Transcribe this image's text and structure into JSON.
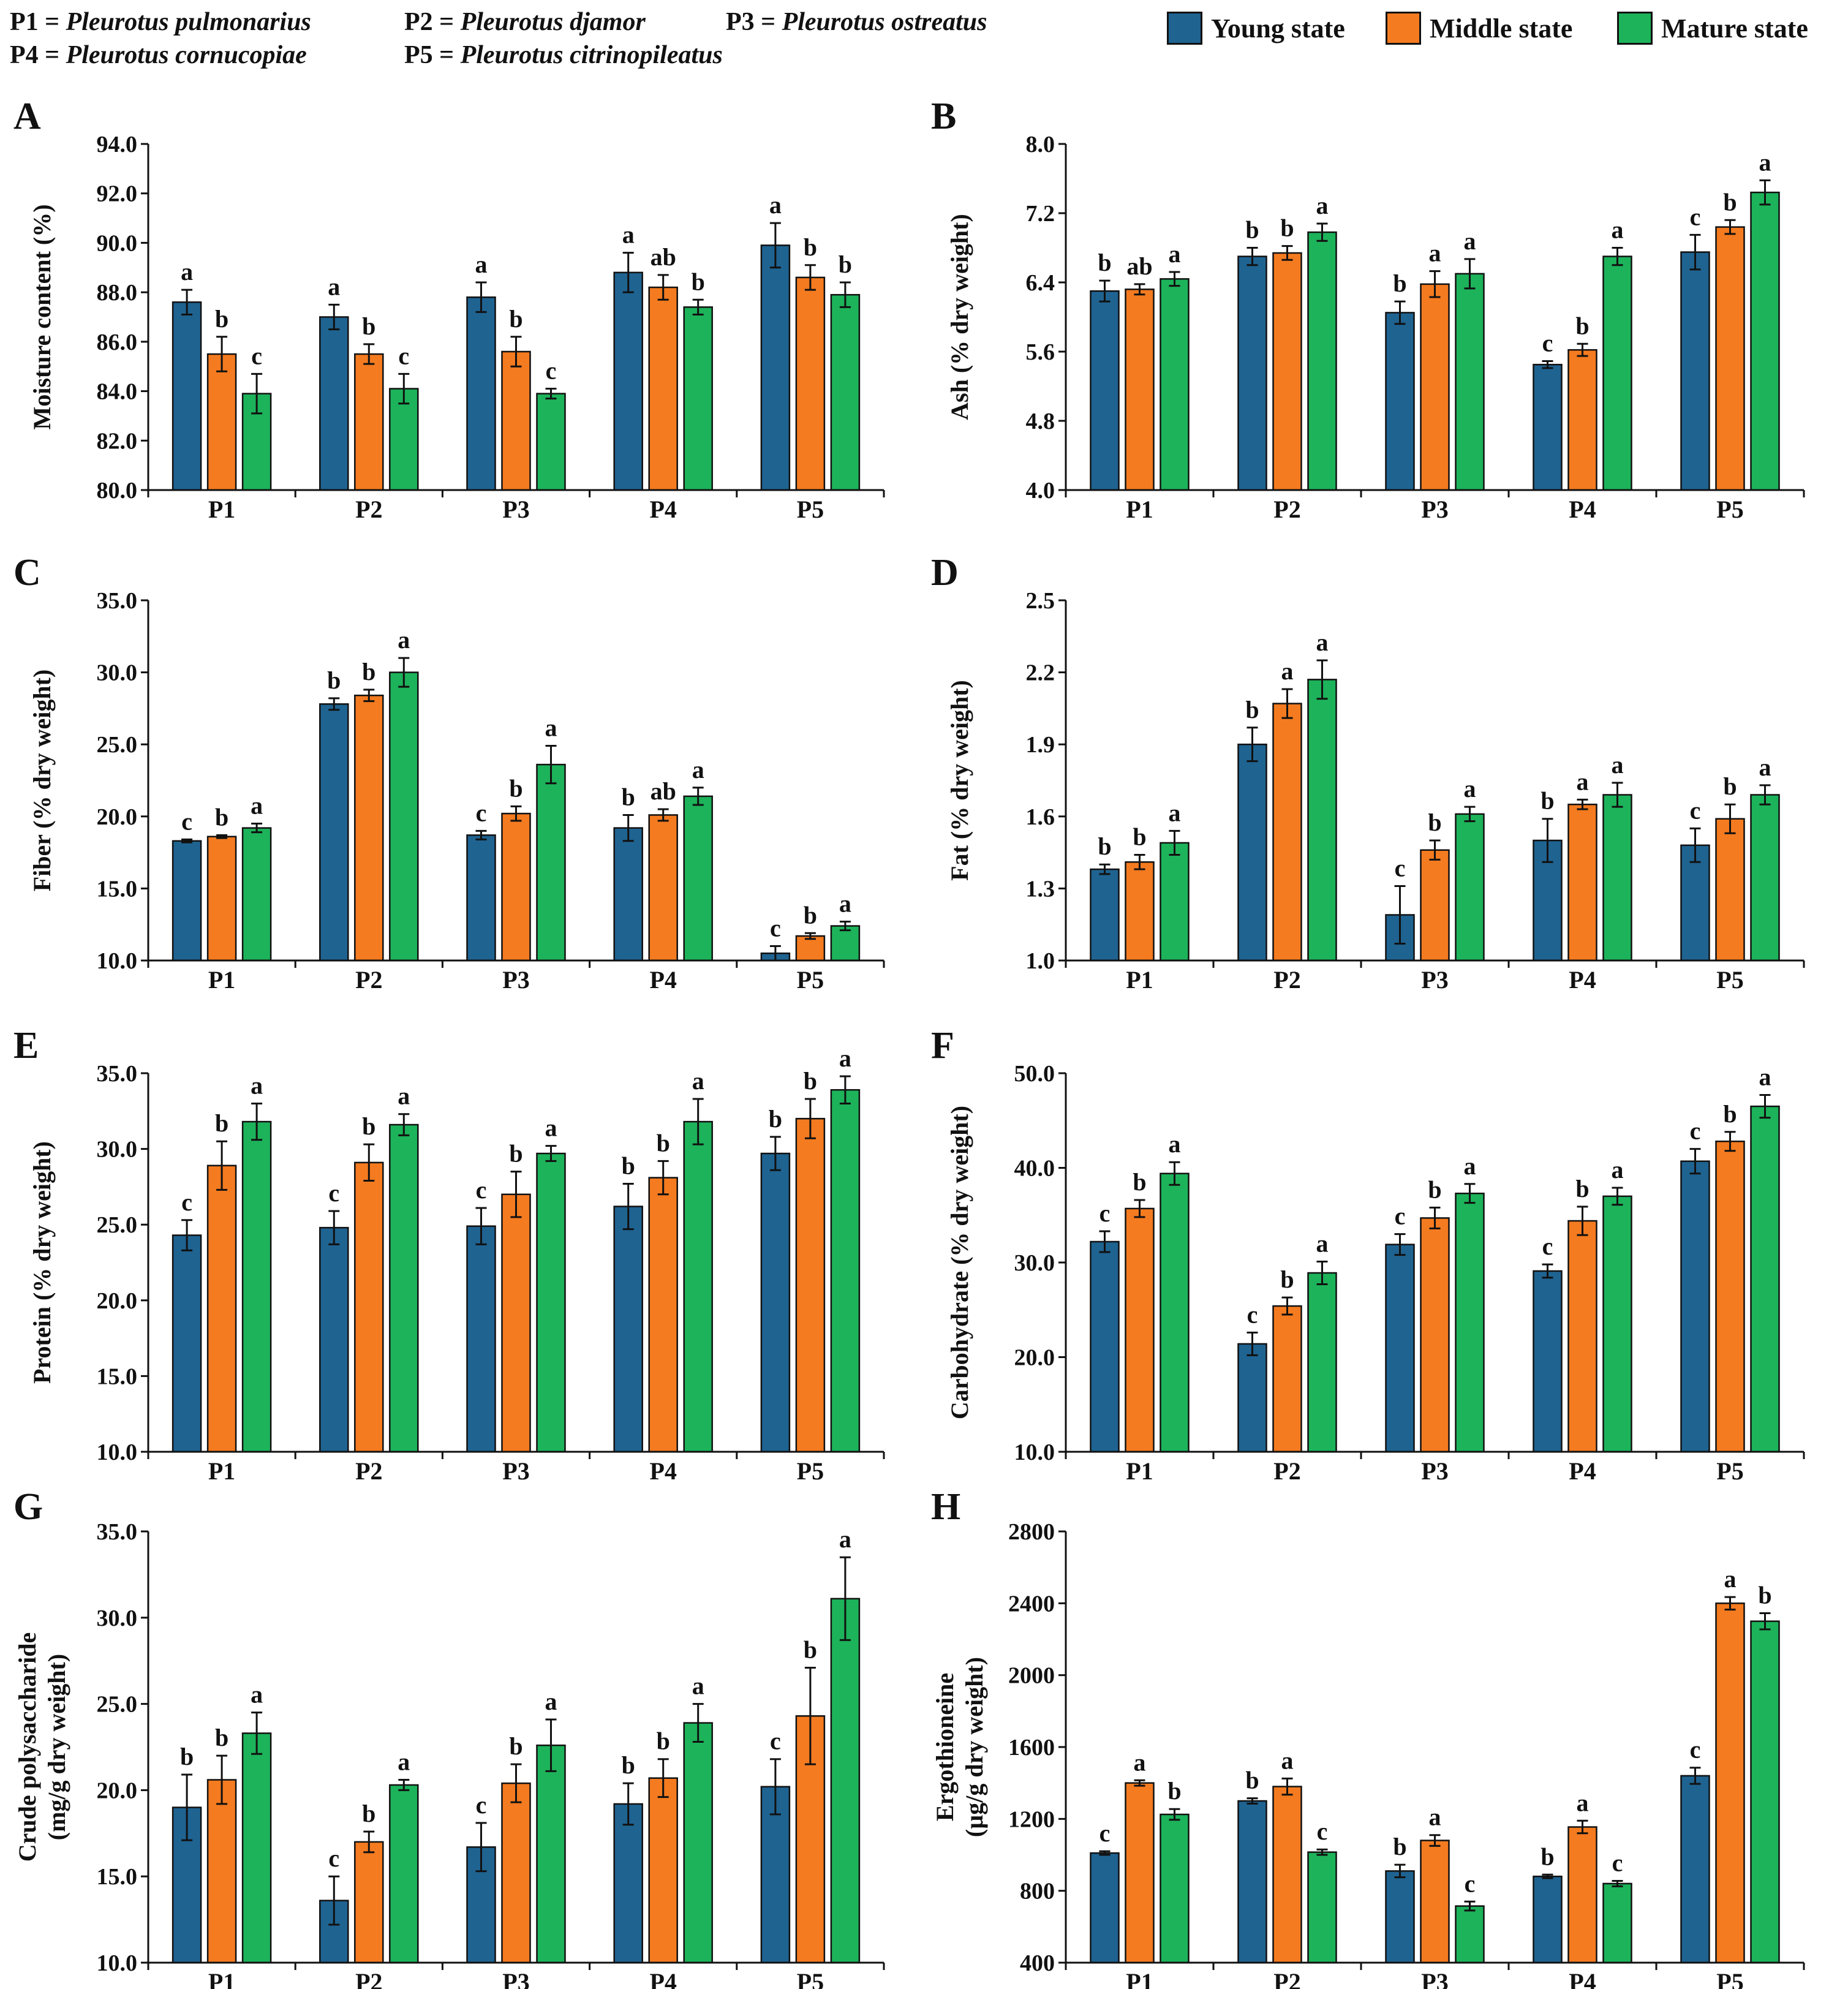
{
  "colors": {
    "young": "#1f6391",
    "middle": "#f47b20",
    "mature": "#1db35a",
    "axis": "#111111"
  },
  "legend": [
    {
      "label": "Young state",
      "color": "#1f6391"
    },
    {
      "label": "Middle state",
      "color": "#f47b20"
    },
    {
      "label": "Mature state",
      "color": "#1db35a"
    }
  ],
  "species": [
    {
      "code": "P1 =",
      "name": "Pleurotus pulmonarius"
    },
    {
      "code": "P2 =",
      "name": "Pleurotus djamor"
    },
    {
      "code": "P3 =",
      "name": "Pleurotus ostreatus"
    },
    {
      "code": "P4 =",
      "name": "Pleurotus  cornucopiae"
    },
    {
      "code": "P5 =",
      "name": "Pleurotus citrinopileatus"
    }
  ],
  "chart_data": [
    {
      "panel": "A",
      "type": "bar",
      "ylabel": "Moisture content (%)",
      "categories": [
        "P1",
        "P2",
        "P3",
        "P4",
        "P5"
      ],
      "ylim": [
        80.0,
        94.0
      ],
      "yticks": [
        "80.0",
        "82.0",
        "84.0",
        "86.0",
        "88.0",
        "90.0",
        "92.0",
        "94.0"
      ],
      "series": [
        {
          "name": "Young state",
          "values": [
            87.6,
            87.0,
            87.8,
            88.8,
            89.9
          ],
          "errors": [
            0.5,
            0.5,
            0.6,
            0.8,
            0.9
          ],
          "letters": [
            "a",
            "a",
            "a",
            "a",
            "a"
          ]
        },
        {
          "name": "Middle state",
          "values": [
            85.5,
            85.5,
            85.6,
            88.2,
            88.6
          ],
          "errors": [
            0.7,
            0.4,
            0.6,
            0.5,
            0.5
          ],
          "letters": [
            "b",
            "b",
            "b",
            "ab",
            "b"
          ]
        },
        {
          "name": "Mature state",
          "values": [
            83.9,
            84.1,
            83.9,
            87.4,
            87.9
          ],
          "errors": [
            0.8,
            0.6,
            0.2,
            0.3,
            0.5
          ],
          "letters": [
            "c",
            "c",
            "c",
            "b",
            "b"
          ]
        }
      ]
    },
    {
      "panel": "B",
      "type": "bar",
      "ylabel": "Ash (% dry weight)",
      "categories": [
        "P1",
        "P2",
        "P3",
        "P4",
        "P5"
      ],
      "ylim": [
        4.0,
        8.0
      ],
      "yticks": [
        "4.0",
        "4.8",
        "5.6",
        "6.4",
        "7.2",
        "8.0"
      ],
      "series": [
        {
          "name": "Young state",
          "values": [
            6.3,
            6.7,
            6.05,
            5.45,
            6.75
          ],
          "errors": [
            0.12,
            0.1,
            0.13,
            0.04,
            0.2
          ],
          "letters": [
            "b",
            "b",
            "b",
            "c",
            "c"
          ]
        },
        {
          "name": "Middle state",
          "values": [
            6.32,
            6.74,
            6.38,
            5.62,
            7.04
          ],
          "errors": [
            0.06,
            0.08,
            0.15,
            0.07,
            0.08
          ],
          "letters": [
            "ab",
            "b",
            "a",
            "b",
            "b"
          ]
        },
        {
          "name": "Mature state",
          "values": [
            6.44,
            6.98,
            6.5,
            6.7,
            7.44
          ],
          "errors": [
            0.08,
            0.1,
            0.17,
            0.1,
            0.14
          ],
          "letters": [
            "a",
            "a",
            "a",
            "a",
            "a"
          ]
        }
      ]
    },
    {
      "panel": "C",
      "type": "bar",
      "ylabel": "Fiber (% dry weight)",
      "categories": [
        "P1",
        "P2",
        "P3",
        "P4",
        "P5"
      ],
      "ylim": [
        10.0,
        35.0
      ],
      "yticks": [
        "10.0",
        "15.0",
        "20.0",
        "25.0",
        "30.0",
        "35.0"
      ],
      "series": [
        {
          "name": "Young state",
          "values": [
            18.3,
            27.8,
            18.7,
            19.2,
            10.5
          ],
          "errors": [
            0.1,
            0.4,
            0.3,
            0.9,
            0.5
          ],
          "letters": [
            "c",
            "b",
            "c",
            "b",
            "c"
          ]
        },
        {
          "name": "Middle state",
          "values": [
            18.6,
            28.4,
            20.2,
            20.1,
            11.7
          ],
          "errors": [
            0.1,
            0.4,
            0.5,
            0.4,
            0.2
          ],
          "letters": [
            "b",
            "b",
            "b",
            "ab",
            "b"
          ]
        },
        {
          "name": "Mature state",
          "values": [
            19.2,
            30.0,
            23.6,
            21.4,
            12.4
          ],
          "errors": [
            0.3,
            1.0,
            1.3,
            0.6,
            0.3
          ],
          "letters": [
            "a",
            "a",
            "a",
            "a",
            "a"
          ]
        }
      ]
    },
    {
      "panel": "D",
      "type": "bar",
      "ylabel": "Fat (% dry weight)",
      "categories": [
        "P1",
        "P2",
        "P3",
        "P4",
        "P5"
      ],
      "ylim": [
        1.0,
        2.5
      ],
      "yticks": [
        "1.0",
        "1.3",
        "1.6",
        "1.9",
        "2.2",
        "2.5"
      ],
      "series": [
        {
          "name": "Young state",
          "values": [
            1.38,
            1.9,
            1.19,
            1.5,
            1.48
          ],
          "errors": [
            0.02,
            0.07,
            0.12,
            0.09,
            0.07
          ],
          "letters": [
            "b",
            "b",
            "c",
            "b",
            "c"
          ]
        },
        {
          "name": "Middle state",
          "values": [
            1.41,
            2.07,
            1.46,
            1.65,
            1.59
          ],
          "errors": [
            0.03,
            0.06,
            0.04,
            0.02,
            0.06
          ],
          "letters": [
            "b",
            "a",
            "b",
            "a",
            "b"
          ]
        },
        {
          "name": "Mature state",
          "values": [
            1.49,
            2.17,
            1.61,
            1.69,
            1.69
          ],
          "errors": [
            0.05,
            0.08,
            0.03,
            0.05,
            0.04
          ],
          "letters": [
            "a",
            "a",
            "a",
            "a",
            "a"
          ]
        }
      ]
    },
    {
      "panel": "E",
      "type": "bar",
      "ylabel": "Protein (% dry weight)",
      "categories": [
        "P1",
        "P2",
        "P3",
        "P4",
        "P5"
      ],
      "ylim": [
        10.0,
        35.0
      ],
      "yticks": [
        "10.0",
        "15.0",
        "20.0",
        "25.0",
        "30.0",
        "35.0"
      ],
      "series": [
        {
          "name": "Young state",
          "values": [
            24.3,
            24.8,
            24.9,
            26.2,
            29.7
          ],
          "errors": [
            1.0,
            1.1,
            1.2,
            1.5,
            1.1
          ],
          "letters": [
            "c",
            "c",
            "c",
            "b",
            "b"
          ]
        },
        {
          "name": "Middle state",
          "values": [
            28.9,
            29.1,
            27.0,
            28.1,
            32.0
          ],
          "errors": [
            1.6,
            1.2,
            1.5,
            1.1,
            1.3
          ],
          "letters": [
            "b",
            "b",
            "b",
            "b",
            "b"
          ]
        },
        {
          "name": "Mature state",
          "values": [
            31.8,
            31.6,
            29.7,
            31.8,
            33.9
          ],
          "errors": [
            1.2,
            0.7,
            0.5,
            1.5,
            0.9
          ],
          "letters": [
            "a",
            "a",
            "a",
            "a",
            "a"
          ]
        }
      ]
    },
    {
      "panel": "F",
      "type": "bar",
      "ylabel": "Carbohydrate (% dry weight)",
      "categories": [
        "P1",
        "P2",
        "P3",
        "P4",
        "P5"
      ],
      "ylim": [
        10.0,
        50.0
      ],
      "yticks": [
        "10.0",
        "20.0",
        "30.0",
        "40.0",
        "50.0"
      ],
      "series": [
        {
          "name": "Young state",
          "values": [
            32.2,
            21.4,
            31.9,
            29.1,
            40.7
          ],
          "errors": [
            1.1,
            1.2,
            1.1,
            0.7,
            1.3
          ],
          "letters": [
            "c",
            "c",
            "c",
            "c",
            "c"
          ]
        },
        {
          "name": "Middle state",
          "values": [
            35.7,
            25.4,
            34.7,
            34.4,
            42.8
          ],
          "errors": [
            0.9,
            0.9,
            1.1,
            1.5,
            1.0
          ],
          "letters": [
            "b",
            "b",
            "b",
            "b",
            "b"
          ]
        },
        {
          "name": "Mature state",
          "values": [
            39.4,
            28.9,
            37.3,
            37.0,
            46.5
          ],
          "errors": [
            1.2,
            1.2,
            1.0,
            0.9,
            1.2
          ],
          "letters": [
            "a",
            "a",
            "a",
            "a",
            "a"
          ]
        }
      ]
    },
    {
      "panel": "G",
      "type": "bar",
      "ylabel": "Crude polysaccharide (mg/g dry weight)",
      "categories": [
        "P1",
        "P2",
        "P3",
        "P4",
        "P5"
      ],
      "ylim": [
        10.0,
        35.0
      ],
      "yticks": [
        "10.0",
        "15.0",
        "20.0",
        "25.0",
        "30.0",
        "35.0"
      ],
      "series": [
        {
          "name": "Young state",
          "values": [
            19.0,
            13.6,
            16.7,
            19.2,
            20.2
          ],
          "errors": [
            1.9,
            1.4,
            1.4,
            1.2,
            1.6
          ],
          "letters": [
            "b",
            "c",
            "c",
            "b",
            "c"
          ]
        },
        {
          "name": "Middle state",
          "values": [
            20.6,
            17.0,
            20.4,
            20.7,
            24.3
          ],
          "errors": [
            1.4,
            0.6,
            1.1,
            1.1,
            2.8
          ],
          "letters": [
            "b",
            "b",
            "b",
            "b",
            "b"
          ]
        },
        {
          "name": "Mature state",
          "values": [
            23.3,
            20.3,
            22.6,
            23.9,
            31.1
          ],
          "errors": [
            1.2,
            0.3,
            1.5,
            1.1,
            2.4
          ],
          "letters": [
            "a",
            "a",
            "a",
            "a",
            "a"
          ]
        }
      ]
    },
    {
      "panel": "H",
      "type": "bar",
      "ylabel": "Ergothioneine (µg/g dry weight)",
      "categories": [
        "P1",
        "P2",
        "P3",
        "P4",
        "P5"
      ],
      "ylim": [
        400,
        2800
      ],
      "yticks": [
        "400",
        "800",
        "1200",
        "1600",
        "2000",
        "2400",
        "2800"
      ],
      "series": [
        {
          "name": "Young state",
          "values": [
            1010,
            1300,
            910,
            880,
            1440
          ],
          "errors": [
            10,
            15,
            35,
            10,
            45
          ],
          "letters": [
            "c",
            "b",
            "b",
            "b",
            "c"
          ]
        },
        {
          "name": "Middle state",
          "values": [
            1400,
            1380,
            1080,
            1155,
            2400
          ],
          "errors": [
            15,
            45,
            30,
            35,
            35
          ],
          "letters": [
            "a",
            "a",
            "a",
            "a",
            "a"
          ]
        },
        {
          "name": "Mature state",
          "values": [
            1225,
            1015,
            715,
            840,
            2300
          ],
          "errors": [
            30,
            15,
            25,
            15,
            45
          ],
          "letters": [
            "b",
            "c",
            "c",
            "c",
            "b"
          ]
        }
      ]
    }
  ]
}
